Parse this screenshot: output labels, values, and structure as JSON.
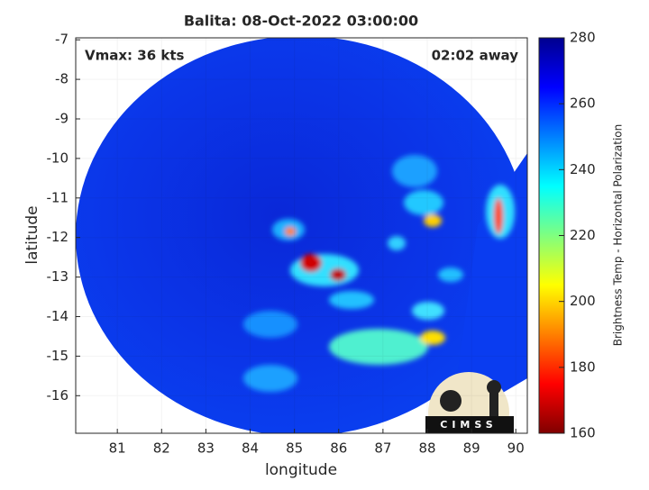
{
  "chart_data": {
    "type": "heatmap",
    "title": "Balita: 08-Oct-2022 03:00:00",
    "x_label": "longitude",
    "y_label": "latitude",
    "xlim": [
      80.06,
      90.26
    ],
    "xticks": [
      81,
      82,
      83,
      84,
      85,
      86,
      87,
      88,
      89,
      90
    ],
    "ylim": [
      -16.95,
      -6.95
    ],
    "yticks": [
      -7,
      -8,
      -9,
      -10,
      -11,
      -12,
      -13,
      -14,
      -15,
      -16
    ],
    "grid": true,
    "annotations": [
      "Vmax: 36 kts",
      "02:02 away"
    ],
    "logo": "CIMSS",
    "colorbar": {
      "label": "Brightness Temp - Horizontal Polarization",
      "clim": [
        160,
        280
      ],
      "ticks": [
        160,
        180,
        200,
        220,
        240,
        260,
        280
      ]
    }
  }
}
